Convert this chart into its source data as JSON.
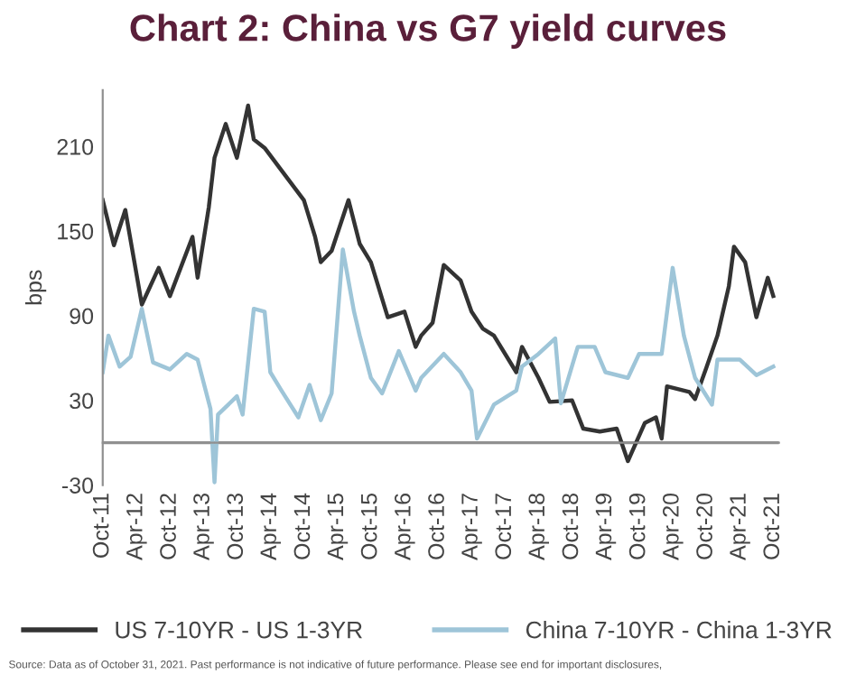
{
  "chart_data": {
    "type": "line",
    "title": "Chart 2: China vs G7 yield curves",
    "ylabel": "bps",
    "series": [
      {
        "name": "US 7-10YR - US 1-3YR",
        "color": "#333333",
        "x": [
          "2011-10",
          "2011-12",
          "2012-02",
          "2012-05",
          "2012-08",
          "2012-10",
          "2013-02",
          "2013-03",
          "2013-05",
          "2013-06",
          "2013-08",
          "2013-10",
          "2013-12",
          "2014-01",
          "2014-03",
          "2014-06",
          "2014-10",
          "2014-12",
          "2015-01",
          "2015-03",
          "2015-06",
          "2015-08",
          "2015-10",
          "2016-01",
          "2016-04",
          "2016-06",
          "2016-07",
          "2016-09",
          "2016-11",
          "2017-02",
          "2017-04",
          "2017-06",
          "2017-08",
          "2017-12",
          "2018-01",
          "2018-04",
          "2018-06",
          "2018-10",
          "2018-12",
          "2019-03",
          "2019-06",
          "2019-08",
          "2019-11",
          "2020-01",
          "2020-02",
          "2020-03",
          "2020-07",
          "2020-08",
          "2020-10",
          "2020-12",
          "2021-02",
          "2021-03",
          "2021-05",
          "2021-07",
          "2021-09",
          "2021-10"
        ],
        "values": [
          172,
          140,
          165,
          98,
          124,
          104,
          146,
          117,
          167,
          202,
          226,
          202,
          239,
          215,
          209,
          193,
          172,
          146,
          128,
          136,
          172,
          141,
          128,
          89,
          93,
          68,
          76,
          85,
          126,
          115,
          93,
          81,
          76,
          50,
          68,
          46,
          29,
          30,
          10,
          8,
          10,
          -13,
          14,
          18,
          3,
          40,
          36,
          31,
          53,
          76,
          111,
          139,
          128,
          89,
          117,
          104
        ]
      },
      {
        "name": "China 7-10YR - China 1-3YR",
        "color": "#9ec5d8",
        "x": [
          "2011-10",
          "2011-11",
          "2012-01",
          "2012-03",
          "2012-05",
          "2012-07",
          "2012-10",
          "2013-01",
          "2013-03",
          "2013-05-10",
          "2013-06-01",
          "2013-06-20",
          "2013-10",
          "2013-11",
          "2014-01",
          "2014-03",
          "2014-04",
          "2014-06",
          "2014-09",
          "2014-11",
          "2015-01",
          "2015-03",
          "2015-05",
          "2015-07",
          "2015-08",
          "2015-10",
          "2015-12",
          "2016-03",
          "2016-06",
          "2016-07",
          "2016-11",
          "2017-02",
          "2017-04",
          "2017-05",
          "2017-08",
          "2017-12",
          "2018-01",
          "2018-04",
          "2018-07",
          "2018-08",
          "2018-11",
          "2019-02",
          "2019-04",
          "2019-08",
          "2019-10",
          "2020-02",
          "2020-04",
          "2020-06",
          "2020-08",
          "2020-11",
          "2020-12",
          "2021-04",
          "2021-07",
          "2021-10"
        ],
        "values": [
          50,
          76,
          54,
          61,
          95,
          57,
          52,
          63,
          59,
          24,
          -28,
          20,
          33,
          20,
          95,
          93,
          50,
          37,
          18,
          41,
          16,
          35,
          137,
          93,
          76,
          46,
          35,
          65,
          37,
          46,
          63,
          50,
          37,
          3,
          27,
          37,
          54,
          63,
          74,
          28,
          68,
          68,
          50,
          46,
          63,
          63,
          124,
          76,
          46,
          27,
          59,
          59,
          48,
          54
        ]
      }
    ],
    "xlim": [
      "2011-10",
      "2021-11"
    ],
    "xticks": [
      {
        "value": "2011-10",
        "label": "Oct-11"
      },
      {
        "value": "2012-04",
        "label": "Apr-12"
      },
      {
        "value": "2012-10",
        "label": "Oct-12"
      },
      {
        "value": "2013-04",
        "label": "Apr-13"
      },
      {
        "value": "2013-10",
        "label": "Oct-13"
      },
      {
        "value": "2014-04",
        "label": "Apr-14"
      },
      {
        "value": "2014-10",
        "label": "Oct-14"
      },
      {
        "value": "2015-04",
        "label": "Apr-15"
      },
      {
        "value": "2015-10",
        "label": "Oct-15"
      },
      {
        "value": "2016-04",
        "label": "Apr-16"
      },
      {
        "value": "2016-10",
        "label": "Oct-16"
      },
      {
        "value": "2017-04",
        "label": "Apr-17"
      },
      {
        "value": "2017-10",
        "label": "Oct-17"
      },
      {
        "value": "2018-04",
        "label": "Apr-18"
      },
      {
        "value": "2018-10",
        "label": "Oct-18"
      },
      {
        "value": "2019-04",
        "label": "Apr-19"
      },
      {
        "value": "2019-10",
        "label": "Oct-19"
      },
      {
        "value": "2020-04",
        "label": "Apr-20"
      },
      {
        "value": "2020-10",
        "label": "Oct-20"
      },
      {
        "value": "2021-04",
        "label": "Apr-21"
      },
      {
        "value": "2021-10",
        "label": "Oct-21"
      }
    ],
    "ylim": [
      -30,
      250
    ],
    "yticks": [
      {
        "value": -30,
        "label": "-30"
      },
      30,
      90,
      150,
      210
    ],
    "ref_lines": [
      {
        "axis": "y",
        "value": 0,
        "color": "#909090"
      }
    ],
    "grid": false,
    "legend": "bottom",
    "annotations": [
      "Source: Data as of October 31, 2021. Past performance is not indicative of future performance. Please see end for important disclosures,"
    ]
  }
}
